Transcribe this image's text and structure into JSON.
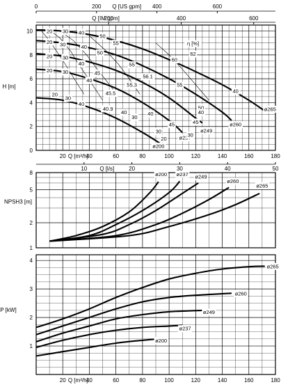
{
  "chart_data": [
    {
      "type": "line",
      "panel": "head",
      "ylabel": "H [m]",
      "ylim": [
        0,
        10.5
      ],
      "yticks": [
        0,
        2,
        4,
        6,
        8,
        10
      ],
      "top_axes": [
        {
          "label": "Q [US gpm]",
          "ticks": [
            0,
            200,
            400,
            600
          ]
        },
        {
          "label": "Q [IM gpm]",
          "ticks": [
            200,
            400,
            600
          ]
        }
      ],
      "bottom_axes": [
        {
          "label": "Q [m³/h]",
          "ticks": [
            20,
            40,
            60,
            80,
            100,
            120,
            140,
            160,
            180
          ]
        },
        {
          "label": "Q [l/s]",
          "ticks": [
            10,
            20,
            30,
            40,
            50
          ]
        }
      ],
      "xlim_m3h": [
        0,
        180
      ],
      "series": [
        {
          "name": "ø265",
          "x": [
            0,
            20,
            40,
            60,
            80,
            100,
            120,
            140,
            160,
            172
          ],
          "y": [
            10.1,
            10.0,
            9.7,
            9.2,
            8.5,
            7.6,
            6.6,
            5.5,
            4.2,
            3.3
          ]
        },
        {
          "name": "ø260",
          "x": [
            0,
            20,
            40,
            60,
            80,
            100,
            120,
            140,
            147
          ],
          "y": [
            9.2,
            9.0,
            8.6,
            8.0,
            7.1,
            6.0,
            4.7,
            3.2,
            2.5
          ]
        },
        {
          "name": "ø249",
          "x": [
            0,
            20,
            40,
            60,
            80,
            100,
            120,
            125
          ],
          "y": [
            8.1,
            7.9,
            7.4,
            6.7,
            5.7,
            4.4,
            2.7,
            2.3
          ]
        },
        {
          "name": "ø237",
          "x": [
            0,
            20,
            40,
            60,
            80,
            100,
            110
          ],
          "y": [
            6.8,
            6.6,
            6.0,
            5.2,
            4.0,
            2.5,
            1.5
          ]
        },
        {
          "name": "ø200",
          "x": [
            0,
            20,
            40,
            60,
            80,
            93
          ],
          "y": [
            4.4,
            4.2,
            3.6,
            2.7,
            1.5,
            0.6
          ]
        }
      ],
      "efficiency_labels": [
        "20",
        "30",
        "40",
        "45",
        "50",
        "55",
        "55.3",
        "56.1",
        "40.9",
        "45.5",
        "60",
        "62"
      ],
      "efficiency_unit": "η [%]"
    },
    {
      "type": "line",
      "panel": "npsh",
      "ylabel": "NPSH3 [m]",
      "yscale": "log",
      "ylim": [
        1,
        8
      ],
      "yticks": [
        1,
        2,
        5,
        8
      ],
      "series": [
        {
          "name": "ø200",
          "x": [
            10,
            30,
            50,
            70,
            85,
            92
          ],
          "y": [
            1.2,
            1.4,
            1.8,
            2.7,
            4.5,
            6.2
          ]
        },
        {
          "name": "ø237",
          "x": [
            10,
            40,
            60,
            80,
            100,
            108
          ],
          "y": [
            1.2,
            1.4,
            1.9,
            2.8,
            4.6,
            6.3
          ]
        },
        {
          "name": "ø249",
          "x": [
            10,
            50,
            70,
            90,
            110,
            122
          ],
          "y": [
            1.2,
            1.45,
            1.9,
            2.8,
            4.5,
            6.0
          ]
        },
        {
          "name": "ø260",
          "x": [
            10,
            60,
            90,
            110,
            130,
            145
          ],
          "y": [
            1.2,
            1.4,
            1.9,
            2.6,
            3.8,
            5.3
          ]
        },
        {
          "name": "ø265",
          "x": [
            10,
            70,
            100,
            130,
            150,
            168
          ],
          "y": [
            1.2,
            1.4,
            1.8,
            2.5,
            3.3,
            4.5
          ]
        }
      ]
    },
    {
      "type": "line",
      "panel": "power",
      "ylabel": "P [kW]",
      "ylim": [
        0,
        4.2
      ],
      "yticks": [
        1,
        2,
        3,
        4
      ],
      "xlabel": "Q [m³/h]",
      "xticks": [
        20,
        40,
        60,
        80,
        100,
        120,
        140,
        160,
        180
      ],
      "series": [
        {
          "name": "ø265",
          "x": [
            0,
            20,
            40,
            60,
            80,
            100,
            120,
            140,
            160,
            172
          ],
          "y": [
            1.65,
            1.95,
            2.3,
            2.7,
            3.05,
            3.35,
            3.55,
            3.7,
            3.78,
            3.8
          ]
        },
        {
          "name": "ø260",
          "x": [
            0,
            20,
            40,
            60,
            80,
            100,
            120,
            147
          ],
          "y": [
            1.4,
            1.7,
            2.0,
            2.3,
            2.55,
            2.7,
            2.78,
            2.85
          ]
        },
        {
          "name": "ø249",
          "x": [
            0,
            20,
            40,
            60,
            80,
            100,
            125
          ],
          "y": [
            1.15,
            1.45,
            1.7,
            1.95,
            2.1,
            2.2,
            2.25
          ]
        },
        {
          "name": "ø237",
          "x": [
            0,
            20,
            40,
            60,
            80,
            100,
            110
          ],
          "y": [
            0.95,
            1.2,
            1.4,
            1.55,
            1.65,
            1.7,
            1.72
          ]
        },
        {
          "name": "ø200",
          "x": [
            0,
            20,
            40,
            60,
            80,
            93
          ],
          "y": [
            0.65,
            0.8,
            0.95,
            1.1,
            1.2,
            1.25
          ]
        }
      ]
    }
  ]
}
